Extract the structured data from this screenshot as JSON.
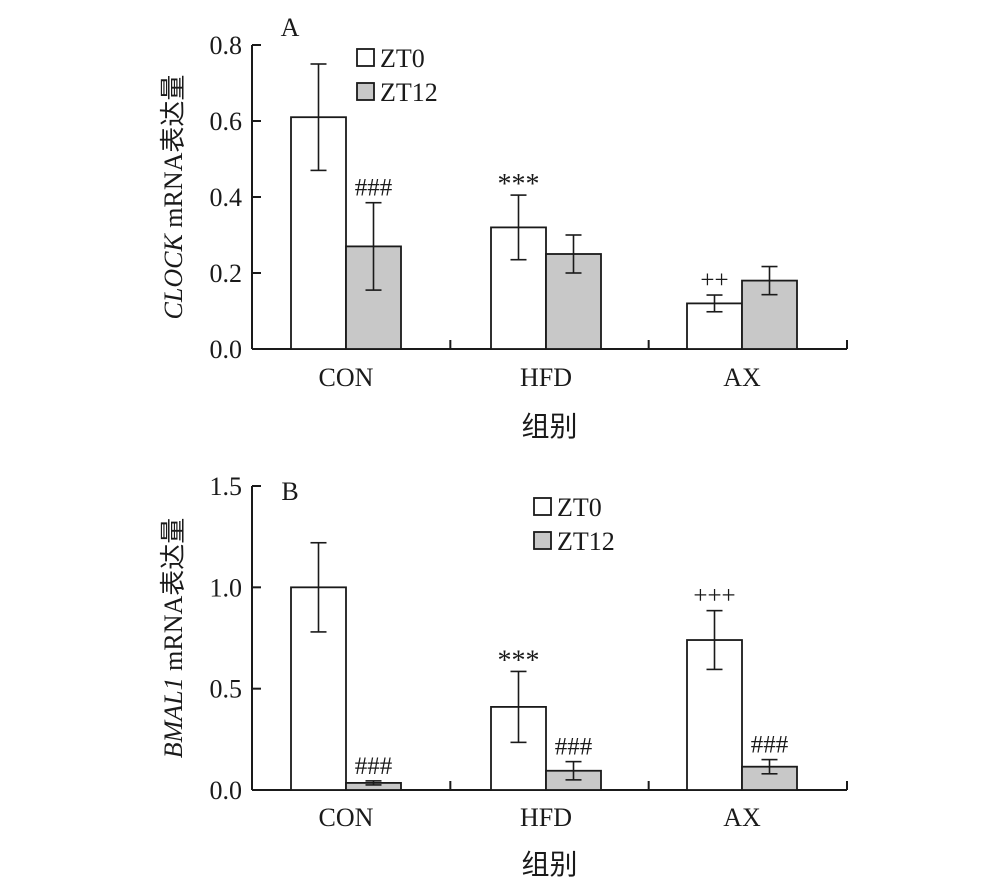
{
  "chart_data": [
    {
      "type": "bar",
      "panel_label": "A",
      "ylabel_italic": "CLOCK",
      "ylabel_rest": " mRNA表达量",
      "xlabel": "组别",
      "categories": [
        "CON",
        "HFD",
        "AX"
      ],
      "ylim": [
        0,
        0.8
      ],
      "yticks": [
        "0.0",
        "0.2",
        "0.4",
        "0.6",
        "0.8"
      ],
      "legend": {
        "position": "top-left",
        "entries": [
          "ZT0",
          "ZT12"
        ]
      },
      "series": [
        {
          "name": "ZT0",
          "color": "#ffffff",
          "values": [
            0.61,
            0.32,
            0.12
          ],
          "errors": [
            0.14,
            0.085,
            0.022
          ],
          "marks": [
            "",
            "***",
            "++"
          ]
        },
        {
          "name": "ZT12",
          "color": "#c8c8c8",
          "values": [
            0.27,
            0.25,
            0.18
          ],
          "errors": [
            0.115,
            0.05,
            0.037
          ],
          "marks": [
            "###",
            "",
            ""
          ]
        }
      ]
    },
    {
      "type": "bar",
      "panel_label": "B",
      "ylabel_italic": "BMAL1",
      "ylabel_rest": " mRNA表达量",
      "xlabel": "组别",
      "categories": [
        "CON",
        "HFD",
        "AX"
      ],
      "ylim": [
        0,
        1.5
      ],
      "yticks": [
        "0.0",
        "0.5",
        "1.0",
        "1.5"
      ],
      "legend": {
        "position": "top-center",
        "entries": [
          "ZT0",
          "ZT12"
        ]
      },
      "series": [
        {
          "name": "ZT0",
          "color": "#ffffff",
          "values": [
            1.0,
            0.41,
            0.74
          ],
          "errors": [
            0.22,
            0.175,
            0.145
          ],
          "marks": [
            "",
            "***",
            "+++"
          ]
        },
        {
          "name": "ZT12",
          "color": "#c8c8c8",
          "values": [
            0.035,
            0.095,
            0.115
          ],
          "errors": [
            0.01,
            0.045,
            0.035
          ],
          "marks": [
            "###",
            "###",
            "###"
          ]
        }
      ]
    }
  ]
}
